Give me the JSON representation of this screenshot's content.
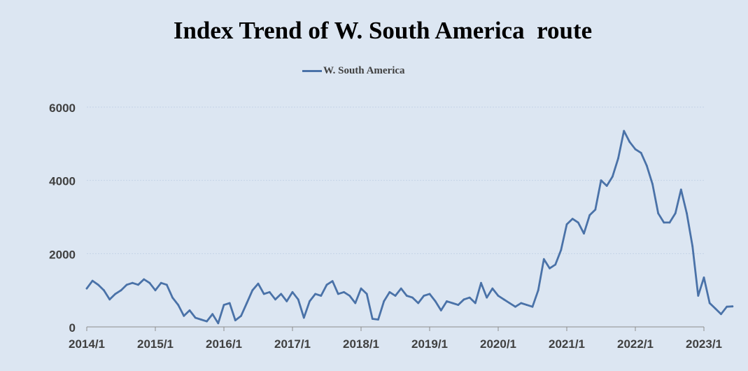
{
  "chart_data": {
    "type": "line",
    "title": "Index Trend of W. South America  route",
    "xlabel": "",
    "ylabel": "",
    "ylim": [
      0,
      6000
    ],
    "yticks": [
      "0",
      "2000",
      "4000",
      "6000"
    ],
    "xticks": [
      "2014/1",
      "2015/1",
      "2016/1",
      "2017/1",
      "2018/1",
      "2019/1",
      "2020/1",
      "2021/1",
      "2022/1",
      "2023/1"
    ],
    "grid": true,
    "legend": "top-center",
    "colors": {
      "background": "#dce6f2",
      "line": "#4a72a8",
      "grid": "#c4d3e6",
      "axis": "#8c8c8c"
    },
    "series": [
      {
        "name": "W. South America",
        "points": [
          [
            "2014/1",
            1050
          ],
          [
            "2014/2",
            1260
          ],
          [
            "2014/3",
            1150
          ],
          [
            "2014/4",
            1000
          ],
          [
            "2014/5",
            750
          ],
          [
            "2014/6",
            900
          ],
          [
            "2014/7",
            1000
          ],
          [
            "2014/8",
            1150
          ],
          [
            "2014/9",
            1200
          ],
          [
            "2014/10",
            1150
          ],
          [
            "2014/11",
            1300
          ],
          [
            "2014/12",
            1200
          ],
          [
            "2015/1",
            1000
          ],
          [
            "2015/2",
            1200
          ],
          [
            "2015/3",
            1150
          ],
          [
            "2015/4",
            800
          ],
          [
            "2015/5",
            600
          ],
          [
            "2015/6",
            300
          ],
          [
            "2015/7",
            450
          ],
          [
            "2015/8",
            250
          ],
          [
            "2015/9",
            200
          ],
          [
            "2015/10",
            150
          ],
          [
            "2015/11",
            350
          ],
          [
            "2015/12",
            100
          ],
          [
            "2016/1",
            600
          ],
          [
            "2016/2",
            650
          ],
          [
            "2016/3",
            180
          ],
          [
            "2016/4",
            300
          ],
          [
            "2016/5",
            650
          ],
          [
            "2016/6",
            1000
          ],
          [
            "2016/7",
            1180
          ],
          [
            "2016/8",
            900
          ],
          [
            "2016/9",
            950
          ],
          [
            "2016/10",
            750
          ],
          [
            "2016/11",
            900
          ],
          [
            "2016/12",
            700
          ],
          [
            "2017/1",
            950
          ],
          [
            "2017/2",
            750
          ],
          [
            "2017/3",
            250
          ],
          [
            "2017/4",
            700
          ],
          [
            "2017/5",
            900
          ],
          [
            "2017/6",
            850
          ],
          [
            "2017/7",
            1150
          ],
          [
            "2017/8",
            1250
          ],
          [
            "2017/9",
            900
          ],
          [
            "2017/10",
            950
          ],
          [
            "2017/11",
            850
          ],
          [
            "2017/12",
            650
          ],
          [
            "2018/1",
            1050
          ],
          [
            "2018/2",
            900
          ],
          [
            "2018/3",
            220
          ],
          [
            "2018/4",
            200
          ],
          [
            "2018/5",
            700
          ],
          [
            "2018/6",
            950
          ],
          [
            "2018/7",
            850
          ],
          [
            "2018/8",
            1050
          ],
          [
            "2018/9",
            850
          ],
          [
            "2018/10",
            800
          ],
          [
            "2018/11",
            650
          ],
          [
            "2018/12",
            850
          ],
          [
            "2019/1",
            900
          ],
          [
            "2019/2",
            700
          ],
          [
            "2019/3",
            450
          ],
          [
            "2019/4",
            700
          ],
          [
            "2019/5",
            650
          ],
          [
            "2019/6",
            600
          ],
          [
            "2019/7",
            750
          ],
          [
            "2019/8",
            800
          ],
          [
            "2019/9",
            650
          ],
          [
            "2019/10",
            1200
          ],
          [
            "2019/11",
            800
          ],
          [
            "2019/12",
            1050
          ],
          [
            "2020/1",
            850
          ],
          [
            "2020/2",
            750
          ],
          [
            "2020/3",
            650
          ],
          [
            "2020/4",
            550
          ],
          [
            "2020/5",
            650
          ],
          [
            "2020/6",
            600
          ],
          [
            "2020/7",
            550
          ],
          [
            "2020/8",
            1000
          ],
          [
            "2020/9",
            1850
          ],
          [
            "2020/10",
            1600
          ],
          [
            "2020/11",
            1700
          ],
          [
            "2020/12",
            2100
          ],
          [
            "2021/1",
            2800
          ],
          [
            "2021/2",
            2950
          ],
          [
            "2021/3",
            2850
          ],
          [
            "2021/4",
            2550
          ],
          [
            "2021/5",
            3050
          ],
          [
            "2021/6",
            3200
          ],
          [
            "2021/7",
            4000
          ],
          [
            "2021/8",
            3850
          ],
          [
            "2021/9",
            4100
          ],
          [
            "2021/10",
            4600
          ],
          [
            "2021/11",
            5350
          ],
          [
            "2021/12",
            5050
          ],
          [
            "2022/1",
            4850
          ],
          [
            "2022/2",
            4750
          ],
          [
            "2022/3",
            4400
          ],
          [
            "2022/4",
            3900
          ],
          [
            "2022/5",
            3100
          ],
          [
            "2022/6",
            2850
          ],
          [
            "2022/7",
            2850
          ],
          [
            "2022/8",
            3100
          ],
          [
            "2022/9",
            3750
          ],
          [
            "2022/10",
            3100
          ],
          [
            "2022/11",
            2200
          ],
          [
            "2022/12",
            850
          ],
          [
            "2023/1",
            1350
          ],
          [
            "2023/2",
            650
          ],
          [
            "2023/3",
            500
          ],
          [
            "2023/4",
            350
          ],
          [
            "2023/5",
            550
          ],
          [
            "2023/6",
            560
          ]
        ]
      }
    ]
  }
}
